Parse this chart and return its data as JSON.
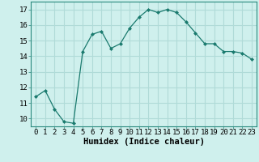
{
  "x": [
    0,
    1,
    2,
    3,
    4,
    5,
    6,
    7,
    8,
    9,
    10,
    11,
    12,
    13,
    14,
    15,
    16,
    17,
    18,
    19,
    20,
    21,
    22,
    23
  ],
  "y": [
    11.4,
    11.8,
    10.6,
    9.8,
    9.7,
    14.3,
    15.4,
    15.6,
    14.5,
    14.8,
    15.8,
    16.5,
    17.0,
    16.8,
    17.0,
    16.8,
    16.2,
    15.5,
    14.8,
    14.8,
    14.3,
    14.3,
    14.2,
    13.8
  ],
  "line_color": "#1a7a6e",
  "marker_color": "#1a7a6e",
  "bg_color": "#cff0ed",
  "grid_color": "#b0dbd8",
  "xlabel": "Humidex (Indice chaleur)",
  "ylabel_ticks": [
    10,
    11,
    12,
    13,
    14,
    15,
    16,
    17
  ],
  "xlim": [
    -0.5,
    23.5
  ],
  "ylim": [
    9.5,
    17.5
  ],
  "tick_fontsize": 6.5,
  "xlabel_fontsize": 7.5
}
